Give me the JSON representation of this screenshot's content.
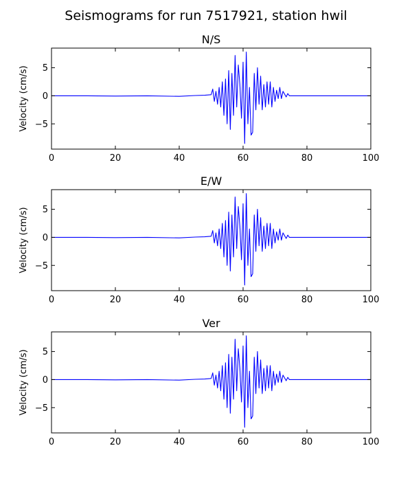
{
  "figure": {
    "title": "Seismograms for run 7517921, station hwil"
  },
  "chart_data": [
    {
      "type": "line",
      "title": "N/S",
      "xlabel": "",
      "ylabel": "Velocity (cm/s)",
      "xlim": [
        0,
        100
      ],
      "ylim": [
        -9.5,
        8.5
      ],
      "xticks": [
        0,
        20,
        40,
        60,
        80,
        100
      ],
      "yticks": [
        -5,
        0,
        5
      ],
      "grid": false,
      "color": "#0000ff",
      "x": [
        0,
        10,
        20,
        30,
        40,
        45,
        48,
        50,
        50.5,
        51,
        51.5,
        52,
        52.5,
        53,
        53.5,
        54,
        54.5,
        55,
        55.5,
        56,
        56.5,
        57,
        57.5,
        58,
        58.5,
        59,
        59.5,
        60,
        60.5,
        61,
        61.5,
        62,
        62.5,
        63,
        63.5,
        64,
        64.5,
        65,
        65.5,
        66,
        66.5,
        67,
        67.5,
        68,
        68.5,
        69,
        69.5,
        70,
        70.5,
        71,
        71.5,
        72,
        72.5,
        73,
        73.5,
        74,
        74.5,
        75,
        80,
        90,
        100
      ],
      "values": [
        0,
        0,
        -0.05,
        0,
        -0.1,
        0.05,
        0.1,
        0.2,
        1.2,
        -1.0,
        0.8,
        -1.5,
        1.5,
        -2.0,
        2.5,
        -3.5,
        3.0,
        -5.0,
        4.5,
        -6.0,
        4.0,
        -3.5,
        7.2,
        -2.0,
        5.5,
        2.0,
        -4.0,
        6.0,
        -8.5,
        7.8,
        -5.0,
        1.5,
        -7.0,
        -6.5,
        4.0,
        -2.5,
        5.0,
        -1.5,
        3.5,
        -2.5,
        2.0,
        -2.0,
        2.5,
        -1.5,
        2.5,
        -2.0,
        1.5,
        -1.0,
        1.0,
        -0.5,
        1.5,
        -0.5,
        0.8,
        0.3,
        -0.2,
        0.4,
        0,
        0,
        0,
        0,
        0
      ]
    },
    {
      "type": "line",
      "title": "E/W",
      "xlabel": "",
      "ylabel": "Velocity (cm/s)",
      "xlim": [
        0,
        100
      ],
      "ylim": [
        -9.5,
        8.5
      ],
      "xticks": [
        0,
        20,
        40,
        60,
        80,
        100
      ],
      "yticks": [
        -5,
        0,
        5
      ],
      "grid": false,
      "color": "#0000ff",
      "x": [
        0,
        10,
        20,
        30,
        40,
        45,
        48,
        50,
        50.5,
        51,
        51.5,
        52,
        52.5,
        53,
        53.5,
        54,
        54.5,
        55,
        55.5,
        56,
        56.5,
        57,
        57.5,
        58,
        58.5,
        59,
        59.5,
        60,
        60.5,
        61,
        61.5,
        62,
        62.5,
        63,
        63.5,
        64,
        64.5,
        65,
        65.5,
        66,
        66.5,
        67,
        67.5,
        68,
        68.5,
        69,
        69.5,
        70,
        70.5,
        71,
        71.5,
        72,
        72.5,
        73,
        73.5,
        74,
        74.5,
        75,
        80,
        90,
        100
      ],
      "values": [
        0,
        0,
        -0.05,
        0,
        -0.1,
        0.05,
        0.1,
        0.2,
        1.2,
        -1.0,
        0.8,
        -1.5,
        1.5,
        -2.0,
        2.5,
        -3.5,
        3.0,
        -5.0,
        4.5,
        -6.0,
        4.0,
        -3.5,
        7.2,
        -2.0,
        5.5,
        2.0,
        -4.0,
        6.0,
        -8.5,
        7.8,
        -5.0,
        1.5,
        -7.0,
        -6.5,
        4.0,
        -2.5,
        5.0,
        -1.5,
        3.5,
        -2.5,
        2.0,
        -2.0,
        2.5,
        -1.5,
        2.5,
        -2.0,
        1.5,
        -1.0,
        1.0,
        -0.5,
        1.5,
        -0.5,
        0.8,
        0.3,
        -0.2,
        0.4,
        0,
        0,
        0,
        0,
        0
      ]
    },
    {
      "type": "line",
      "title": "Ver",
      "xlabel": "",
      "ylabel": "Velocity (cm/s)",
      "xlim": [
        0,
        100
      ],
      "ylim": [
        -9.5,
        8.5
      ],
      "xticks": [
        0,
        20,
        40,
        60,
        80,
        100
      ],
      "yticks": [
        -5,
        0,
        5
      ],
      "grid": false,
      "color": "#0000ff",
      "x": [
        0,
        10,
        20,
        30,
        40,
        45,
        48,
        50,
        50.5,
        51,
        51.5,
        52,
        52.5,
        53,
        53.5,
        54,
        54.5,
        55,
        55.5,
        56,
        56.5,
        57,
        57.5,
        58,
        58.5,
        59,
        59.5,
        60,
        60.5,
        61,
        61.5,
        62,
        62.5,
        63,
        63.5,
        64,
        64.5,
        65,
        65.5,
        66,
        66.5,
        67,
        67.5,
        68,
        68.5,
        69,
        69.5,
        70,
        70.5,
        71,
        71.5,
        72,
        72.5,
        73,
        73.5,
        74,
        74.5,
        75,
        80,
        90,
        100
      ],
      "values": [
        0,
        0,
        -0.05,
        0,
        -0.1,
        0.05,
        0.1,
        0.2,
        1.2,
        -1.0,
        0.8,
        -1.5,
        1.5,
        -2.0,
        2.5,
        -3.5,
        3.0,
        -5.0,
        4.5,
        -6.0,
        4.0,
        -3.5,
        7.2,
        -2.0,
        5.5,
        2.0,
        -4.0,
        6.0,
        -8.5,
        7.8,
        -5.0,
        1.5,
        -7.0,
        -6.5,
        4.0,
        -2.5,
        5.0,
        -1.5,
        3.5,
        -2.5,
        2.0,
        -2.0,
        2.5,
        -1.5,
        2.5,
        -2.0,
        1.5,
        -1.0,
        1.0,
        -0.5,
        1.5,
        -0.5,
        0.8,
        0.3,
        -0.2,
        0.4,
        0,
        0,
        0,
        0,
        0
      ]
    }
  ]
}
